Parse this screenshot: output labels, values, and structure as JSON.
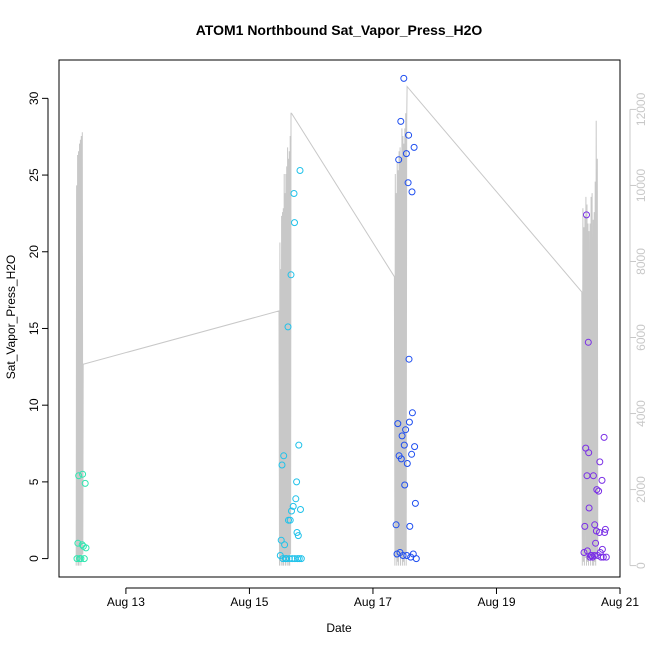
{
  "chart_data": {
    "type": "scatter",
    "title": "ATOM1 Northbound Sat_Vapor_Press_H2O",
    "xlabel": "Date",
    "ylabel": "Sat_Vapor_Press_H2O",
    "xlim": [
      "2019-08-11T22:00",
      "2019-08-21T00:00"
    ],
    "ylim": [
      -1.2,
      32.5
    ],
    "y2lim": [
      -300,
      13300
    ],
    "x_ticks": [
      {
        "date": "2019-08-13T00:00",
        "label": "Aug 13"
      },
      {
        "date": "2019-08-15T00:00",
        "label": "Aug 15"
      },
      {
        "date": "2019-08-17T00:00",
        "label": "Aug 17"
      },
      {
        "date": "2019-08-19T00:00",
        "label": "Aug 19"
      },
      {
        "date": "2019-08-21T00:00",
        "label": "Aug 21"
      }
    ],
    "y_ticks": [
      0,
      5,
      10,
      15,
      20,
      25,
      30
    ],
    "y2_ticks": [
      0,
      2000,
      4000,
      6000,
      8000,
      10000,
      12000
    ],
    "grid": false,
    "colors": {
      "line": "#c8c8c8",
      "right_axis": "#c8c8c8",
      "axis": "#000000"
    },
    "point_groups": [
      {
        "color": "#2fe6b0",
        "points": [
          [
            "2019-08-12T05:00",
            0.0
          ],
          [
            "2019-08-12T05:20",
            1.0
          ],
          [
            "2019-08-12T05:40",
            5.4
          ],
          [
            "2019-08-12T06:00",
            0.0
          ],
          [
            "2019-08-12T06:30",
            0.0
          ],
          [
            "2019-08-12T07:00",
            0.9
          ],
          [
            "2019-08-12T07:10",
            5.5
          ],
          [
            "2019-08-12T07:30",
            0.8
          ],
          [
            "2019-08-12T07:50",
            0.0
          ],
          [
            "2019-08-12T08:10",
            4.9
          ],
          [
            "2019-08-12T08:30",
            0.7
          ]
        ]
      },
      {
        "color": "#1fc2ea",
        "points": [
          [
            "2019-08-15T12:00",
            0.2
          ],
          [
            "2019-08-15T12:20",
            1.2
          ],
          [
            "2019-08-15T12:40",
            6.1
          ],
          [
            "2019-08-15T13:00",
            0.0
          ],
          [
            "2019-08-15T13:20",
            6.7
          ],
          [
            "2019-08-15T13:40",
            0.9
          ],
          [
            "2019-08-15T14:00",
            0.0
          ],
          [
            "2019-08-15T14:30",
            0.0
          ],
          [
            "2019-08-15T15:00",
            15.1
          ],
          [
            "2019-08-15T15:10",
            2.5
          ],
          [
            "2019-08-15T15:30",
            0.0
          ],
          [
            "2019-08-15T15:50",
            2.5
          ],
          [
            "2019-08-15T16:10",
            18.5
          ],
          [
            "2019-08-15T16:20",
            3.1
          ],
          [
            "2019-08-15T16:40",
            0.0
          ],
          [
            "2019-08-15T17:00",
            3.4
          ],
          [
            "2019-08-15T17:20",
            23.8
          ],
          [
            "2019-08-15T17:30",
            21.9
          ],
          [
            "2019-08-15T17:40",
            0.0
          ],
          [
            "2019-08-15T18:00",
            3.9
          ],
          [
            "2019-08-15T18:20",
            5.0
          ],
          [
            "2019-08-15T18:30",
            1.7
          ],
          [
            "2019-08-15T18:40",
            0.0
          ],
          [
            "2019-08-15T19:00",
            1.5
          ],
          [
            "2019-08-15T19:10",
            7.4
          ],
          [
            "2019-08-15T19:20",
            0.0
          ],
          [
            "2019-08-15T19:40",
            25.3
          ],
          [
            "2019-08-15T19:50",
            3.2
          ],
          [
            "2019-08-15T20:10",
            0.0
          ]
        ]
      },
      {
        "color": "#1e4ef0",
        "points": [
          [
            "2019-08-17T09:00",
            2.2
          ],
          [
            "2019-08-17T09:20",
            0.3
          ],
          [
            "2019-08-17T09:40",
            8.8
          ],
          [
            "2019-08-17T10:00",
            26.0
          ],
          [
            "2019-08-17T10:10",
            6.7
          ],
          [
            "2019-08-17T10:30",
            0.4
          ],
          [
            "2019-08-17T10:50",
            28.5
          ],
          [
            "2019-08-17T11:00",
            6.5
          ],
          [
            "2019-08-17T11:20",
            8.0
          ],
          [
            "2019-08-17T11:40",
            0.2
          ],
          [
            "2019-08-17T12:00",
            31.3
          ],
          [
            "2019-08-17T12:10",
            7.4
          ],
          [
            "2019-08-17T12:20",
            4.8
          ],
          [
            "2019-08-17T12:40",
            8.4
          ],
          [
            "2019-08-17T13:00",
            26.4
          ],
          [
            "2019-08-17T13:10",
            0.2
          ],
          [
            "2019-08-17T13:20",
            6.2
          ],
          [
            "2019-08-17T13:40",
            24.5
          ],
          [
            "2019-08-17T13:50",
            27.6
          ],
          [
            "2019-08-17T14:00",
            13.0
          ],
          [
            "2019-08-17T14:10",
            8.9
          ],
          [
            "2019-08-17T14:20",
            2.1
          ],
          [
            "2019-08-17T14:40",
            0.1
          ],
          [
            "2019-08-17T15:00",
            6.8
          ],
          [
            "2019-08-17T15:10",
            23.9
          ],
          [
            "2019-08-17T15:20",
            9.5
          ],
          [
            "2019-08-17T15:40",
            0.3
          ],
          [
            "2019-08-17T16:00",
            26.8
          ],
          [
            "2019-08-17T16:10",
            7.3
          ],
          [
            "2019-08-17T16:30",
            3.6
          ],
          [
            "2019-08-17T16:50",
            0.0
          ]
        ]
      },
      {
        "color": "#7a2fe6",
        "points": [
          [
            "2019-08-20T10:00",
            0.4
          ],
          [
            "2019-08-20T10:20",
            2.1
          ],
          [
            "2019-08-20T10:40",
            7.2
          ],
          [
            "2019-08-20T11:00",
            22.4
          ],
          [
            "2019-08-20T11:10",
            5.4
          ],
          [
            "2019-08-20T11:20",
            0.5
          ],
          [
            "2019-08-20T11:40",
            14.1
          ],
          [
            "2019-08-20T11:50",
            6.9
          ],
          [
            "2019-08-20T12:00",
            3.3
          ],
          [
            "2019-08-20T12:20",
            0.1
          ],
          [
            "2019-08-20T12:40",
            0.2
          ],
          [
            "2019-08-20T13:00",
            0.2
          ],
          [
            "2019-08-20T13:20",
            0.1
          ],
          [
            "2019-08-20T13:40",
            5.4
          ],
          [
            "2019-08-20T14:00",
            0.2
          ],
          [
            "2019-08-20T14:10",
            2.2
          ],
          [
            "2019-08-20T14:30",
            1.0
          ],
          [
            "2019-08-20T14:50",
            1.8
          ],
          [
            "2019-08-20T15:00",
            4.5
          ],
          [
            "2019-08-20T15:20",
            0.2
          ],
          [
            "2019-08-20T15:40",
            4.4
          ],
          [
            "2019-08-20T16:00",
            1.7
          ],
          [
            "2019-08-20T16:10",
            6.3
          ],
          [
            "2019-08-20T16:20",
            0.4
          ],
          [
            "2019-08-20T16:40",
            0.1
          ],
          [
            "2019-08-20T17:00",
            5.1
          ],
          [
            "2019-08-20T17:10",
            0.6
          ],
          [
            "2019-08-20T17:30",
            0.1
          ],
          [
            "2019-08-20T17:50",
            7.9
          ],
          [
            "2019-08-20T18:00",
            1.7
          ],
          [
            "2019-08-20T18:20",
            1.9
          ],
          [
            "2019-08-20T18:40",
            0.1
          ]
        ]
      }
    ],
    "line_series": {
      "axis": "right",
      "segments": [
        {
          "start": "2019-08-12T04:40",
          "step_minutes": 11,
          "values": [
            0,
            10000,
            100,
            10800,
            0,
            10900,
            0,
            11100,
            200,
            11200,
            0,
            11300,
            100,
            11400,
            300,
            5300,
            5300
          ]
        },
        {
          "start": "2019-08-15T11:30",
          "step_minutes": 10,
          "values": [
            6700,
            0,
            8500,
            200,
            7800,
            0,
            9200,
            100,
            9300,
            0,
            9400,
            0,
            10300,
            200,
            9800,
            0,
            10300,
            100,
            10500,
            0,
            11000,
            200,
            10700,
            0,
            10900,
            0,
            11300,
            300,
            11900,
            11900
          ]
        },
        {
          "start": "2019-08-17T08:20",
          "step_minutes": 11,
          "values": [
            7600,
            0,
            10300,
            200,
            9800,
            0,
            10600,
            100,
            10400,
            0,
            10900,
            300,
            11000,
            0,
            10700,
            200,
            11500,
            0,
            11300,
            100,
            11100,
            0,
            11500,
            300,
            11900,
            0,
            11700,
            12600
          ]
        },
        {
          "start": "2019-08-20T09:10",
          "step_minutes": 12,
          "values": [
            7200,
            0,
            9400,
            100,
            8900,
            0,
            9200,
            200,
            9700,
            0,
            9500,
            100,
            9000,
            0,
            8800,
            300,
            9000,
            0,
            9700,
            200,
            9800,
            0,
            9100,
            0,
            9300,
            100,
            10100,
            0,
            11700,
            300,
            10700,
            200
          ]
        }
      ]
    }
  }
}
